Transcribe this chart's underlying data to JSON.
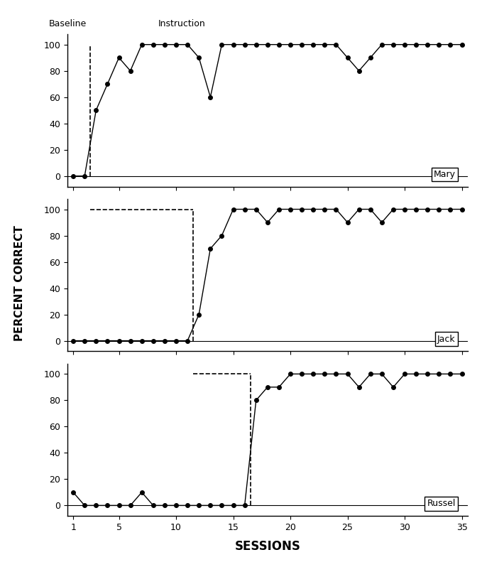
{
  "mary": {
    "sessions": [
      1,
      2,
      3,
      4,
      5,
      6,
      7,
      8,
      9,
      10,
      11,
      12,
      13,
      14,
      15,
      16,
      17,
      18,
      19,
      20,
      21,
      22,
      23,
      24,
      25,
      26,
      27,
      28,
      29,
      30,
      31,
      32,
      33,
      34,
      35
    ],
    "values": [
      0,
      0,
      50,
      70,
      90,
      80,
      100,
      100,
      100,
      100,
      100,
      90,
      60,
      100,
      100,
      100,
      100,
      100,
      100,
      100,
      100,
      100,
      100,
      100,
      90,
      80,
      90,
      100,
      100,
      100,
      100,
      100,
      100,
      100,
      100
    ],
    "phase_change": 2.5,
    "label": "Mary"
  },
  "jack": {
    "sessions": [
      1,
      2,
      3,
      4,
      5,
      6,
      7,
      8,
      9,
      10,
      11,
      12,
      13,
      14,
      15,
      16,
      17,
      18,
      19,
      20,
      21,
      22,
      23,
      24,
      25,
      26,
      27,
      28,
      29,
      30,
      31,
      32,
      33,
      34,
      35
    ],
    "values": [
      0,
      0,
      0,
      0,
      0,
      0,
      0,
      0,
      0,
      0,
      0,
      20,
      70,
      80,
      100,
      100,
      100,
      90,
      100,
      100,
      100,
      100,
      100,
      100,
      90,
      100,
      100,
      90,
      100,
      100,
      100,
      100,
      100,
      100,
      100
    ],
    "phase_change": 11.5,
    "label": "Jack"
  },
  "russel": {
    "sessions": [
      1,
      2,
      3,
      4,
      5,
      6,
      7,
      8,
      9,
      10,
      11,
      12,
      13,
      14,
      15,
      16,
      17,
      18,
      19,
      20,
      21,
      22,
      23,
      24,
      25,
      26,
      27,
      28,
      29,
      30,
      31,
      32,
      33,
      34,
      35
    ],
    "values": [
      10,
      0,
      0,
      0,
      0,
      0,
      10,
      0,
      0,
      0,
      0,
      0,
      0,
      0,
      0,
      0,
      80,
      90,
      90,
      100,
      100,
      100,
      100,
      100,
      100,
      90,
      100,
      100,
      90,
      100,
      100,
      100,
      100,
      100,
      100
    ],
    "phase_change": 16.5,
    "label": "Russel"
  },
  "baseline_label": "Baseline",
  "instruction_label": "Instruction",
  "ylabel": "PERCENT CORRECT",
  "xlabel": "SESSIONS",
  "yticks": [
    0,
    20,
    40,
    60,
    80,
    100
  ],
  "xticks": [
    1,
    5,
    10,
    15,
    20,
    25,
    30,
    35
  ],
  "xlim_left": 0.5,
  "xlim_right": 35.5,
  "fig_width": 6.79,
  "fig_height": 7.98,
  "dpi": 100,
  "line_color": "black",
  "marker": "o",
  "marker_size": 4,
  "background_color": "white"
}
